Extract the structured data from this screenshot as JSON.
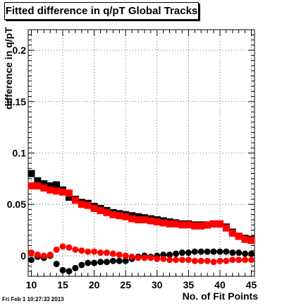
{
  "title": "Fitted difference in q/pT  Global Tracks",
  "footer": "Fri Feb  1 10:27:33 2013",
  "chart_data": {
    "type": "scatter",
    "title": "Fitted difference in q/pT  Global Tracks",
    "xlabel": "No. of Fit Points",
    "ylabel": "difference in q/pT",
    "xlim": [
      9.5,
      45.5
    ],
    "ylim": [
      -0.02,
      0.22
    ],
    "x_ticks": [
      10,
      15,
      20,
      25,
      30,
      35,
      40,
      45
    ],
    "y_ticks": [
      0,
      0.05,
      0.1,
      0.15,
      0.2
    ],
    "y_tick_labels": [
      "0",
      "0.05",
      "0.1",
      "0.15",
      "0.2"
    ],
    "grid": true,
    "x": [
      10,
      11,
      12,
      13,
      14,
      15,
      16,
      17,
      18,
      19,
      20,
      21,
      22,
      23,
      24,
      25,
      26,
      27,
      28,
      29,
      30,
      31,
      32,
      33,
      34,
      35,
      36,
      37,
      38,
      39,
      40,
      41,
      42,
      43,
      44,
      45
    ],
    "series": [
      {
        "marker": "square",
        "color": "#000000",
        "values": [
          0.08,
          0.073,
          0.07,
          0.068,
          0.069,
          0.064,
          0.057,
          0.055,
          0.052,
          0.051,
          0.048,
          0.046,
          0.044,
          0.042,
          0.041,
          0.04,
          0.039,
          0.038,
          0.037,
          0.036,
          0.035,
          0.034,
          0.033,
          0.032,
          0.031,
          0.031,
          0.03,
          0.03,
          0.03,
          0.031,
          0.031,
          0.028,
          0.023,
          0.019,
          0.017,
          0.016
        ]
      },
      {
        "marker": "square",
        "color": "#ff0000",
        "values": [
          0.068,
          0.068,
          0.066,
          0.064,
          0.063,
          0.062,
          0.061,
          0.054,
          0.05,
          0.049,
          0.046,
          0.044,
          0.042,
          0.04,
          0.039,
          0.038,
          0.036,
          0.035,
          0.035,
          0.034,
          0.033,
          0.032,
          0.031,
          0.031,
          0.03,
          0.03,
          0.029,
          0.029,
          0.03,
          0.031,
          0.031,
          0.027,
          0.022,
          0.019,
          0.016,
          0.015
        ]
      },
      {
        "marker": "circle",
        "color": "#000000",
        "values": [
          -0.004,
          -0.001,
          -0.002,
          0.0,
          -0.008,
          -0.014,
          -0.015,
          -0.012,
          -0.009,
          -0.007,
          -0.007,
          -0.006,
          -0.006,
          -0.005,
          -0.005,
          -0.005,
          -0.003,
          -0.001,
          0.0,
          -0.001,
          0.0,
          0.001,
          0.001,
          0.002,
          0.003,
          0.003,
          0.004,
          0.004,
          0.004,
          0.004,
          0.004,
          0.004,
          0.003,
          0.003,
          0.002,
          0.002
        ]
      },
      {
        "marker": "circle",
        "color": "#ff0000",
        "values": [
          0.003,
          0.001,
          0.0,
          0.001,
          0.006,
          0.009,
          0.008,
          0.006,
          0.005,
          0.004,
          0.004,
          0.003,
          0.003,
          0.002,
          0.001,
          0.0,
          -0.001,
          -0.002,
          -0.002,
          -0.002,
          -0.003,
          -0.003,
          -0.004,
          -0.004,
          -0.004,
          -0.004,
          -0.005,
          -0.005,
          -0.005,
          -0.006,
          -0.005,
          -0.005,
          -0.004,
          -0.004,
          -0.004,
          -0.004
        ]
      }
    ]
  }
}
